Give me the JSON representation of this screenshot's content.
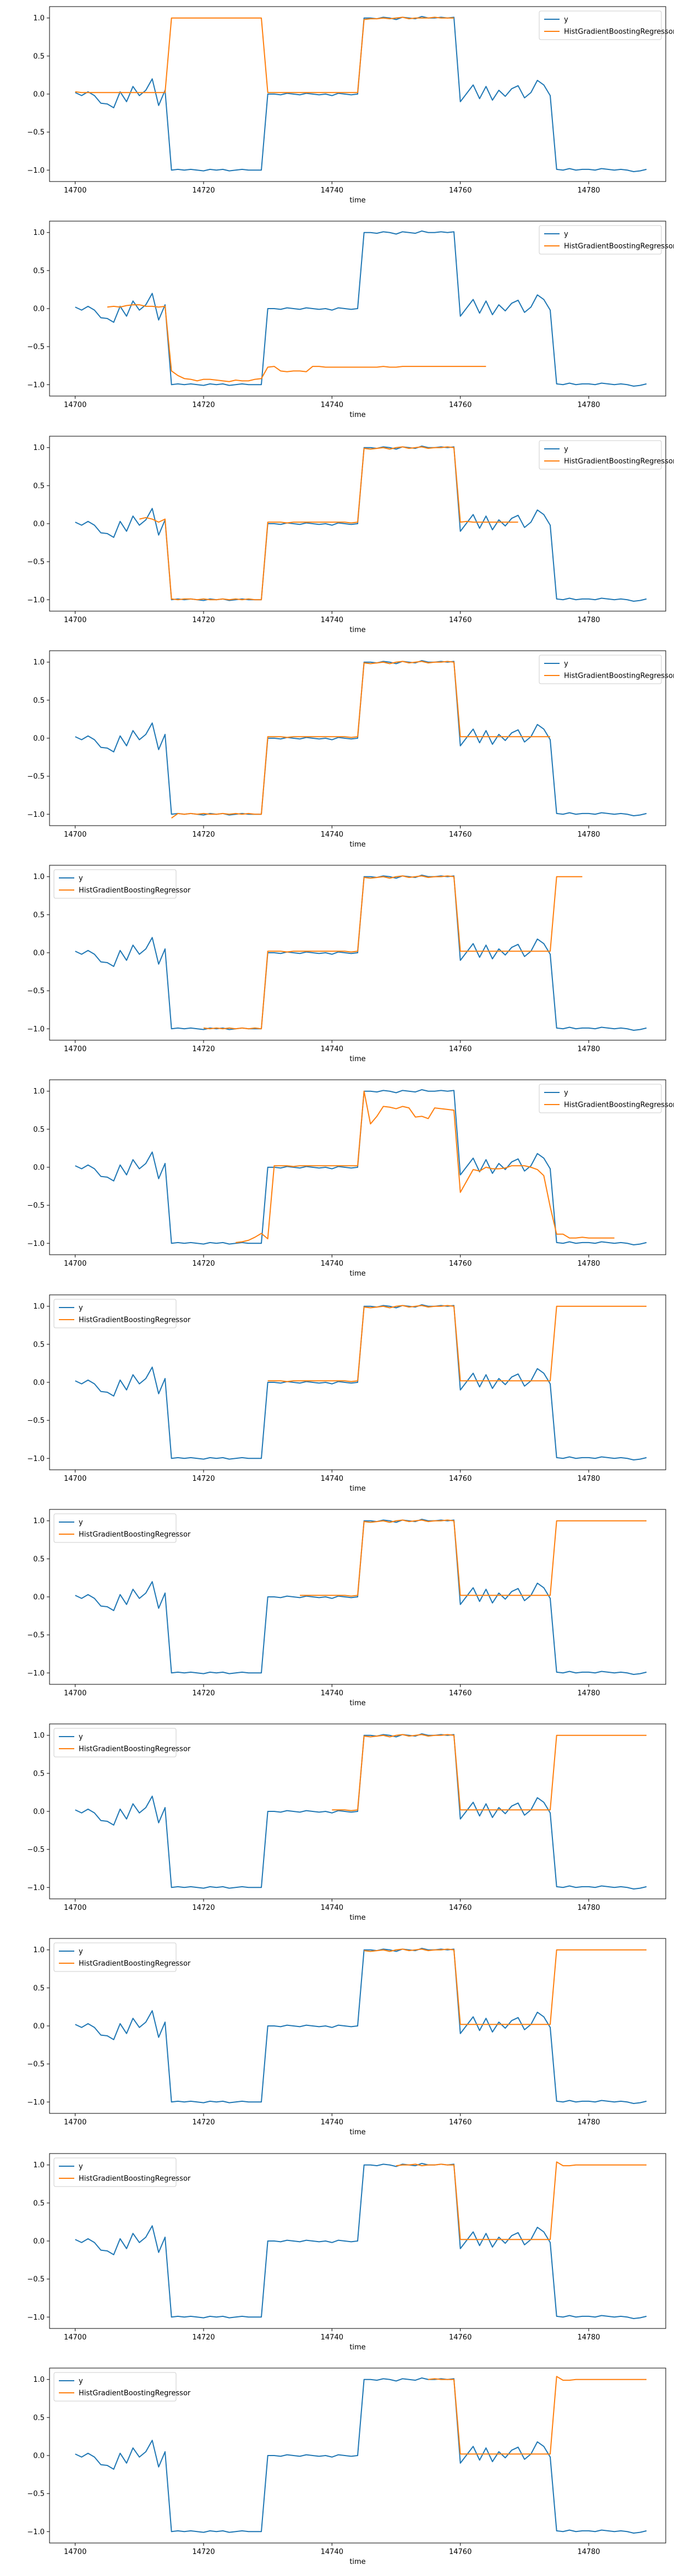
{
  "series_colors": {
    "y": "#1f77b4",
    "pred": "#ff7f0e"
  },
  "x_ticks": [
    14700,
    14720,
    14740,
    14760,
    14780
  ],
  "y_ticks": [
    -1.0,
    -0.5,
    0.0,
    0.5,
    1.0
  ],
  "y_tick_labels": [
    "−1.0",
    "−0.5",
    "0.0",
    "0.5",
    "1.0"
  ],
  "xlim": [
    14696,
    14792
  ],
  "ylim": [
    -1.15,
    1.15
  ],
  "y_series": [
    0.02,
    -0.02,
    0.03,
    -0.02,
    -0.12,
    -0.13,
    -0.18,
    0.03,
    -0.1,
    0.1,
    -0.02,
    0.05,
    0.2,
    -0.15,
    0.05,
    -1.0,
    -0.99,
    -1.0,
    -0.99,
    -1.0,
    -1.01,
    -0.99,
    -1.0,
    -0.99,
    -1.01,
    -1.0,
    -0.99,
    -1.0,
    -1.0,
    -1.0,
    0.0,
    0.0,
    -0.01,
    0.01,
    0.0,
    -0.01,
    0.01,
    0.0,
    -0.01,
    0.0,
    -0.02,
    0.01,
    0.0,
    -0.01,
    0.0,
    1.0,
    1.0,
    0.99,
    1.01,
    1.0,
    0.98,
    1.01,
    1.0,
    0.99,
    1.02,
    1.0,
    1.0,
    1.01,
    1.0,
    1.01,
    -0.1,
    0.01,
    0.12,
    -0.06,
    0.1,
    -0.08,
    0.05,
    -0.03,
    0.07,
    0.11,
    -0.05,
    0.02,
    0.18,
    0.12,
    -0.02,
    -0.99,
    -1.0,
    -0.98,
    -1.0,
    -0.99,
    -0.99,
    -1.0,
    -0.98,
    -0.99,
    -1.0,
    -0.99,
    -1.0,
    -1.02,
    -1.01,
    -0.99
  ],
  "chart_data": [
    {
      "type": "line",
      "xlabel": "time",
      "legend_loc": "upper right",
      "legend": [
        "y",
        "HistGradientBoostingRegressor"
      ],
      "pred": {
        "x_start": 14700,
        "values": [
          0.03,
          0.02,
          0.02,
          0.02,
          0.02,
          0.02,
          0.02,
          0.02,
          0.02,
          0.02,
          0.02,
          0.02,
          0.02,
          0.02,
          0.02,
          1.0,
          1.0,
          1.0,
          1.0,
          1.0,
          1.0,
          1.0,
          1.0,
          1.0,
          1.0,
          1.0,
          1.0,
          1.0,
          1.0,
          1.0,
          0.02,
          0.02,
          0.02,
          0.02,
          0.02,
          0.02,
          0.02,
          0.02,
          0.02,
          0.02,
          0.02,
          0.02,
          0.02,
          0.02,
          0.02,
          0.98,
          0.99,
          0.99,
          1.0,
          0.99,
          1.0,
          1.01,
          0.99,
          1.0,
          1.0,
          1.0,
          1.01,
          1.0,
          1.0,
          1.0
        ]
      }
    },
    {
      "type": "line",
      "xlabel": "time",
      "legend_loc": "upper right",
      "legend": [
        "y",
        "HistGradientBoostingRegressor"
      ],
      "pred": {
        "x_start": 14705,
        "values": [
          0.02,
          0.03,
          0.02,
          0.04,
          0.05,
          0.05,
          0.03,
          0.03,
          0.02,
          0.03,
          -0.82,
          -0.88,
          -0.92,
          -0.93,
          -0.95,
          -0.93,
          -0.93,
          -0.94,
          -0.95,
          -0.96,
          -0.94,
          -0.95,
          -0.95,
          -0.93,
          -0.92,
          -0.77,
          -0.76,
          -0.82,
          -0.83,
          -0.82,
          -0.82,
          -0.83,
          -0.76,
          -0.76,
          -0.77,
          -0.77,
          -0.77,
          -0.77,
          -0.77,
          -0.77,
          -0.77,
          -0.77,
          -0.77,
          -0.76,
          -0.77,
          -0.77,
          -0.76,
          -0.76,
          -0.76,
          -0.76,
          -0.76,
          -0.76,
          -0.76,
          -0.76,
          -0.76,
          -0.76,
          -0.76,
          -0.76,
          -0.76,
          -0.76
        ]
      }
    },
    {
      "type": "line",
      "xlabel": "time",
      "legend_loc": "upper right",
      "legend": [
        "y",
        "HistGradientBoostingRegressor"
      ],
      "pred": {
        "x_start": 14710,
        "values": [
          0.06,
          0.08,
          0.06,
          0.02,
          0.06,
          -0.99,
          -1.0,
          -0.99,
          -0.99,
          -1.0,
          -0.99,
          -1.0,
          -1.0,
          -0.99,
          -1.0,
          -0.99,
          -1.0,
          -0.99,
          -1.0,
          -1.0,
          0.02,
          0.02,
          0.02,
          0.01,
          0.02,
          0.02,
          0.02,
          0.02,
          0.02,
          0.02,
          0.02,
          0.02,
          0.02,
          0.01,
          0.02,
          0.99,
          0.98,
          0.99,
          1.0,
          0.98,
          1.0,
          1.01,
          0.99,
          1.0,
          1.01,
          0.99,
          1.0,
          1.0,
          1.01,
          1.0,
          0.02,
          0.03,
          0.02,
          0.02,
          0.02,
          0.02,
          0.02,
          0.02,
          0.02,
          0.02
        ]
      }
    },
    {
      "type": "line",
      "xlabel": "time",
      "legend_loc": "upper right",
      "legend": [
        "y",
        "HistGradientBoostingRegressor"
      ],
      "pred": {
        "x_start": 14715,
        "values": [
          -1.05,
          -0.99,
          -1.0,
          -0.99,
          -1.0,
          -0.99,
          -1.0,
          -1.0,
          -0.99,
          -1.0,
          -0.99,
          -1.0,
          -0.99,
          -1.0,
          -1.0,
          0.02,
          0.02,
          0.02,
          0.01,
          0.02,
          0.02,
          0.02,
          0.02,
          0.02,
          0.02,
          0.02,
          0.02,
          0.02,
          0.01,
          0.02,
          0.99,
          0.98,
          0.99,
          1.0,
          0.98,
          1.0,
          1.01,
          0.99,
          1.0,
          1.01,
          0.99,
          1.0,
          1.0,
          1.01,
          1.0,
          0.02,
          0.02,
          0.02,
          0.02,
          0.02,
          0.02,
          0.02,
          0.02,
          0.02,
          0.02,
          0.02,
          0.02,
          0.02,
          0.02,
          0.02
        ]
      }
    },
    {
      "type": "line",
      "xlabel": "time",
      "legend_loc": "upper left",
      "legend": [
        "y",
        "HistGradientBoostingRegressor"
      ],
      "pred": {
        "x_start": 14720,
        "values": [
          -0.99,
          -1.0,
          -0.99,
          -1.0,
          -0.99,
          -1.0,
          -0.99,
          -1.0,
          -0.99,
          -1.0,
          0.02,
          0.02,
          0.02,
          0.01,
          0.02,
          0.02,
          0.02,
          0.02,
          0.02,
          0.02,
          0.02,
          0.02,
          0.02,
          0.01,
          0.02,
          0.99,
          0.98,
          0.99,
          1.0,
          0.98,
          1.0,
          1.01,
          0.99,
          1.0,
          1.01,
          0.99,
          1.0,
          1.0,
          1.01,
          1.0,
          0.02,
          0.02,
          0.02,
          0.02,
          0.02,
          0.02,
          0.02,
          0.02,
          0.02,
          0.02,
          0.02,
          0.02,
          0.02,
          0.02,
          0.02,
          1.0,
          1.0,
          1.0,
          1.0,
          1.0
        ]
      }
    },
    {
      "type": "line",
      "xlabel": "time",
      "legend_loc": "upper right",
      "legend": [
        "y",
        "HistGradientBoostingRegressor"
      ],
      "pred": {
        "x_start": 14725,
        "values": [
          -0.99,
          -0.98,
          -0.96,
          -0.92,
          -0.87,
          -0.94,
          0.02,
          0.02,
          0.02,
          0.01,
          0.02,
          0.02,
          0.02,
          0.02,
          0.02,
          0.02,
          0.02,
          0.02,
          0.02,
          0.02,
          1.0,
          0.57,
          0.67,
          0.8,
          0.79,
          0.77,
          0.8,
          0.78,
          0.66,
          0.67,
          0.64,
          0.78,
          0.77,
          0.76,
          0.75,
          -0.33,
          -0.18,
          -0.03,
          -0.05,
          0.0,
          -0.02,
          -0.02,
          -0.01,
          0.02,
          0.02,
          0.02,
          0.0,
          -0.03,
          -0.11,
          -0.52,
          -0.88,
          -0.88,
          -0.93,
          -0.93,
          -0.92,
          -0.93,
          -0.93,
          -0.93,
          -0.93,
          -0.93
        ]
      }
    },
    {
      "type": "line",
      "xlabel": "time",
      "legend_loc": "upper left",
      "legend": [
        "y",
        "HistGradientBoostingRegressor"
      ],
      "pred": {
        "x_start": 14730,
        "values": [
          0.02,
          0.02,
          0.02,
          0.01,
          0.02,
          0.02,
          0.02,
          0.02,
          0.02,
          0.02,
          0.02,
          0.02,
          0.02,
          0.01,
          0.02,
          0.99,
          0.98,
          0.99,
          1.0,
          0.98,
          1.0,
          1.01,
          0.99,
          1.0,
          1.01,
          0.99,
          1.0,
          1.0,
          1.01,
          1.0,
          0.02,
          0.02,
          0.02,
          0.02,
          0.02,
          0.02,
          0.02,
          0.02,
          0.02,
          0.02,
          0.02,
          0.02,
          0.02,
          0.02,
          0.02,
          1.0,
          1.0,
          1.0,
          1.0,
          1.0,
          1.0,
          1.0,
          1.0,
          1.0,
          1.0,
          1.0,
          1.0,
          1.0,
          1.0,
          1.0
        ]
      }
    },
    {
      "type": "line",
      "xlabel": "time",
      "legend_loc": "upper left",
      "legend": [
        "y",
        "HistGradientBoostingRegressor"
      ],
      "pred": {
        "x_start": 14735,
        "values": [
          0.02,
          0.02,
          0.02,
          0.02,
          0.02,
          0.02,
          0.02,
          0.02,
          0.01,
          0.02,
          0.99,
          0.98,
          0.99,
          1.0,
          0.98,
          1.0,
          1.01,
          0.99,
          1.0,
          1.01,
          0.99,
          1.0,
          1.0,
          1.01,
          1.0,
          0.02,
          0.02,
          0.02,
          0.02,
          0.02,
          0.02,
          0.02,
          0.02,
          0.02,
          0.02,
          0.02,
          0.02,
          0.02,
          0.02,
          0.02,
          1.0,
          1.0,
          1.0,
          1.0,
          1.0,
          1.0,
          1.0,
          1.0,
          1.0,
          1.0,
          1.0,
          1.0,
          1.0,
          1.0,
          1.0
        ]
      }
    },
    {
      "type": "line",
      "xlabel": "time",
      "legend_loc": "upper left",
      "legend": [
        "y",
        "HistGradientBoostingRegressor"
      ],
      "pred": {
        "x_start": 14740,
        "values": [
          0.02,
          0.02,
          0.02,
          0.01,
          0.02,
          0.99,
          0.98,
          0.99,
          1.0,
          0.98,
          1.0,
          1.01,
          0.99,
          1.0,
          1.01,
          0.99,
          1.0,
          1.0,
          1.01,
          1.0,
          0.02,
          0.02,
          0.02,
          0.02,
          0.02,
          0.02,
          0.02,
          0.02,
          0.02,
          0.02,
          0.02,
          0.02,
          0.02,
          0.02,
          0.02,
          1.0,
          1.0,
          1.0,
          1.0,
          1.0,
          1.0,
          1.0,
          1.0,
          1.0,
          1.0,
          1.0,
          1.0,
          1.0,
          1.0,
          1.0
        ]
      }
    },
    {
      "type": "line",
      "xlabel": "time",
      "legend_loc": "upper left",
      "legend": [
        "y",
        "HistGradientBoostingRegressor"
      ],
      "pred": {
        "x_start": 14745,
        "values": [
          0.99,
          0.98,
          0.99,
          1.0,
          0.98,
          1.0,
          1.01,
          0.99,
          1.0,
          1.01,
          0.99,
          1.0,
          1.0,
          1.01,
          1.0,
          0.02,
          0.02,
          0.02,
          0.02,
          0.02,
          0.02,
          0.02,
          0.02,
          0.02,
          0.02,
          0.02,
          0.02,
          0.02,
          0.02,
          0.02,
          1.0,
          1.0,
          1.0,
          1.0,
          1.0,
          1.0,
          1.0,
          1.0,
          1.0,
          1.0,
          1.0,
          1.0,
          1.0,
          1.0,
          1.0
        ]
      }
    },
    {
      "type": "line",
      "xlabel": "time",
      "legend_loc": "upper left",
      "legend": [
        "y",
        "HistGradientBoostingRegressor"
      ],
      "pred": {
        "x_start": 14750,
        "values": [
          0.99,
          1.0,
          1.0,
          1.01,
          0.99,
          1.0,
          1.0,
          1.01,
          1.0,
          1.0,
          0.02,
          0.02,
          0.02,
          0.02,
          0.02,
          0.02,
          0.02,
          0.02,
          0.02,
          0.02,
          0.02,
          0.02,
          0.02,
          0.02,
          0.02,
          1.04,
          0.99,
          0.99,
          1.0,
          1.0,
          1.0,
          1.0,
          1.0,
          1.0,
          1.0,
          1.0,
          1.0,
          1.0,
          1.0,
          1.0
        ]
      }
    },
    {
      "type": "line",
      "xlabel": "time",
      "legend_loc": "upper left",
      "legend": [
        "y",
        "HistGradientBoostingRegressor"
      ],
      "pred": {
        "x_start": 14755,
        "values": [
          1.0,
          1.01,
          1.0,
          1.0,
          1.0,
          0.02,
          0.02,
          0.02,
          0.02,
          0.02,
          0.02,
          0.02,
          0.02,
          0.02,
          0.02,
          0.02,
          0.02,
          0.02,
          0.02,
          0.02,
          1.04,
          0.99,
          0.99,
          1.0,
          1.0,
          1.0,
          1.0,
          1.0,
          1.0,
          1.0,
          1.0,
          1.0,
          1.0,
          1.0,
          1.0
        ]
      }
    }
  ]
}
